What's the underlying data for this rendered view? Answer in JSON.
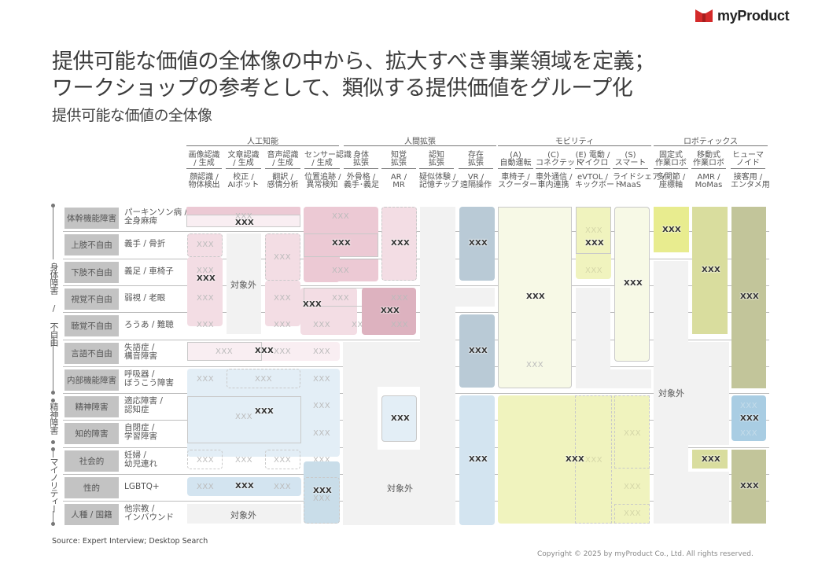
{
  "brand": {
    "name": "myProduct",
    "logo_icon": "bow-tie-logo-icon",
    "logo_color": "#d42a2a"
  },
  "title": {
    "line1": "提供可能な価値の全体像の中から、拡大すべき事業領域を定義；",
    "line2": "ワークショップの参考として、類似する提供価値をグループ化",
    "subtitle": "提供可能な価値の全体像"
  },
  "groups": [
    {
      "label": "人工知能"
    },
    {
      "label": "人間拡張"
    },
    {
      "label": "モビリティ"
    },
    {
      "label": "ロボティックス"
    }
  ],
  "columns": [
    {
      "head1": "画像認識",
      "head2": "/ 生成",
      "sub1": "顔認識 /",
      "sub2": "物体検出"
    },
    {
      "head1": "文章認識",
      "head2": "/ 生成",
      "sub1": "校正 /",
      "sub2": "AIボット"
    },
    {
      "head1": "音声認識",
      "head2": "/ 生成",
      "sub1": "翻訳 /",
      "sub2": "感情分析"
    },
    {
      "head1": "センサー認識",
      "head2": "/ 生成",
      "sub1": "位置追跡 /",
      "sub2": "異常検知"
    },
    {
      "head1": "身体",
      "head2": "拡張",
      "sub1": "外骨格 /",
      "sub2": "義手･義足"
    },
    {
      "head1": "知覚",
      "head2": "拡張",
      "sub1": "AR /",
      "sub2": "MR"
    },
    {
      "head1": "認知",
      "head2": "拡張",
      "sub1": "疑似体験 /",
      "sub2": "記憶チップ"
    },
    {
      "head1": "存在",
      "head2": "拡張",
      "sub1": "VR /",
      "sub2": "遠隔操作"
    },
    {
      "head1": "(A)",
      "head2": "自動運転",
      "sub1": "車椅子 /",
      "sub2": "スクーター"
    },
    {
      "head1": "(C)",
      "head2": "コネクテッド",
      "sub1": "車外通信 /",
      "sub2": "車内連携"
    },
    {
      "head1": "(E) 電動 /",
      "head2": "マイクロ",
      "sub1": "eVTOL /",
      "sub2": "キックボード"
    },
    {
      "head1": "(S)",
      "head2": "スマート",
      "sub1": "ライドシェア /",
      "sub2": "MaaS"
    },
    {
      "head1": "固定式",
      "head2": "作業ロボ",
      "sub1": "多関節 /",
      "sub2": "座標軸"
    },
    {
      "head1": "移動式",
      "head2": "作業ロボ",
      "sub1": "AMR /",
      "sub2": "MoMas"
    },
    {
      "head1": "ヒューマ",
      "head2": "ノイド",
      "sub1": "接客用 /",
      "sub2": "エンタメ用"
    }
  ],
  "categories": [
    {
      "label": "身体障害 / 不自由"
    },
    {
      "label": "精神障害"
    },
    {
      "label": "マイノリティー"
    }
  ],
  "rows": [
    {
      "tag": "体幹機能障害",
      "desc1": "パーキンソン病 /",
      "desc2": "全身麻痺"
    },
    {
      "tag": "上肢不自由",
      "desc1": "義手 / 骨折",
      "desc2": ""
    },
    {
      "tag": "下肢不自由",
      "desc1": "義足 / 車椅子",
      "desc2": ""
    },
    {
      "tag": "視覚不自由",
      "desc1": "弱視 / 老眼",
      "desc2": ""
    },
    {
      "tag": "聴覚不自由",
      "desc1": "ろうあ / 難聴",
      "desc2": ""
    },
    {
      "tag": "言語不自由",
      "desc1": "失語症 /",
      "desc2": "構音障害"
    },
    {
      "tag": "内部機能障害",
      "desc1": "呼吸器 /",
      "desc2": "ぼうこう障害"
    },
    {
      "tag": "精神障害",
      "desc1": "適応障害 /",
      "desc2": "認知症"
    },
    {
      "tag": "知的障害",
      "desc1": "自閉症 /",
      "desc2": "学習障害"
    },
    {
      "tag": "社会的",
      "desc1": "妊婦 /",
      "desc2": "幼児連れ"
    },
    {
      "tag": "性的",
      "desc1": "LGBTQ+",
      "desc2": ""
    },
    {
      "tag": "人種 / 国籍",
      "desc1": "他宗教 /",
      "desc2": "インバウンド"
    }
  ],
  "cell": {
    "placeholder": "XXX",
    "not_applicable": "対象外"
  },
  "colors": {
    "pink_light": "#f9eef2",
    "pink": "#f3dde4",
    "pink_mid": "#ecc9d4",
    "pink_dark": "#ddb2bf",
    "blue_light": "#e3eef6",
    "blue": "#d3e4f0",
    "blue_mid": "#c9dde9",
    "blue_gray": "#b9cad6",
    "blue_sky": "#a9cde3",
    "yellow_light": "#f7f9e6",
    "yellow": "#f0f3be",
    "yellow_bright": "#e8ec8f",
    "olive_light": "#d9dd9e",
    "olive": "#c2c59a",
    "gray": "#f2f2f2",
    "tag_gray": "#c3c3c3"
  },
  "footer": {
    "source": "Source: Expert Interview; Desktop Search",
    "copyright": "Copyright © 2025 by myProduct Co., Ltd.  All rights reserved."
  }
}
